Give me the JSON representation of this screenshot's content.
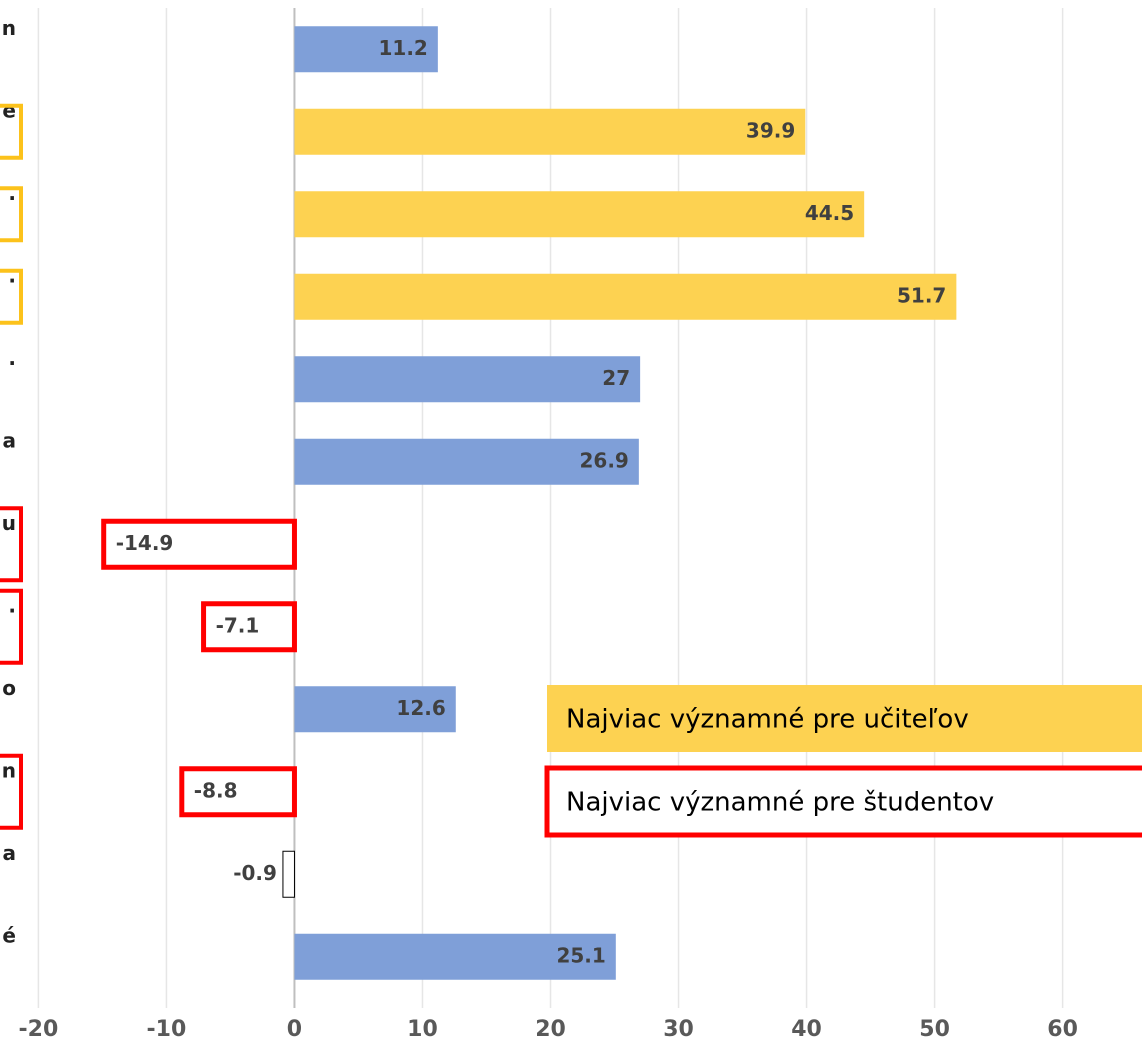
{
  "chart_data": {
    "type": "barh",
    "categories": [
      "n",
      "e",
      ".",
      ".",
      ".",
      "a",
      "u",
      ".",
      "o",
      "n",
      "a",
      "é"
    ],
    "values": [
      11.2,
      39.9,
      44.5,
      51.7,
      27,
      26.9,
      -14.9,
      -7.1,
      12.6,
      -8.8,
      -0.9,
      25.1
    ],
    "colors": [
      "#7f9fd8",
      "#fdd251",
      "#fdd251",
      "#fdd251",
      "#7f9fd8",
      "#7f9fd8",
      "#ffffff",
      "#ffffff",
      "#7f9fd8",
      "#ffffff",
      "#ffffff",
      "#7f9fd8"
    ],
    "edgecolors": [
      null,
      null,
      null,
      null,
      null,
      null,
      "#ff0000",
      "#ff0000",
      null,
      "#ff0000",
      "#000000",
      null
    ],
    "xlim": [
      -23,
      66.2
    ],
    "xticks": [
      -20,
      -10,
      0,
      10,
      20,
      30,
      40,
      50,
      60
    ],
    "grid": true,
    "legend": [
      {
        "name": "Najviac významné pre učiteľov",
        "color": "#fdd251"
      },
      {
        "name": "Najviac významné pre študentov",
        "color": "#ff0000"
      }
    ]
  }
}
